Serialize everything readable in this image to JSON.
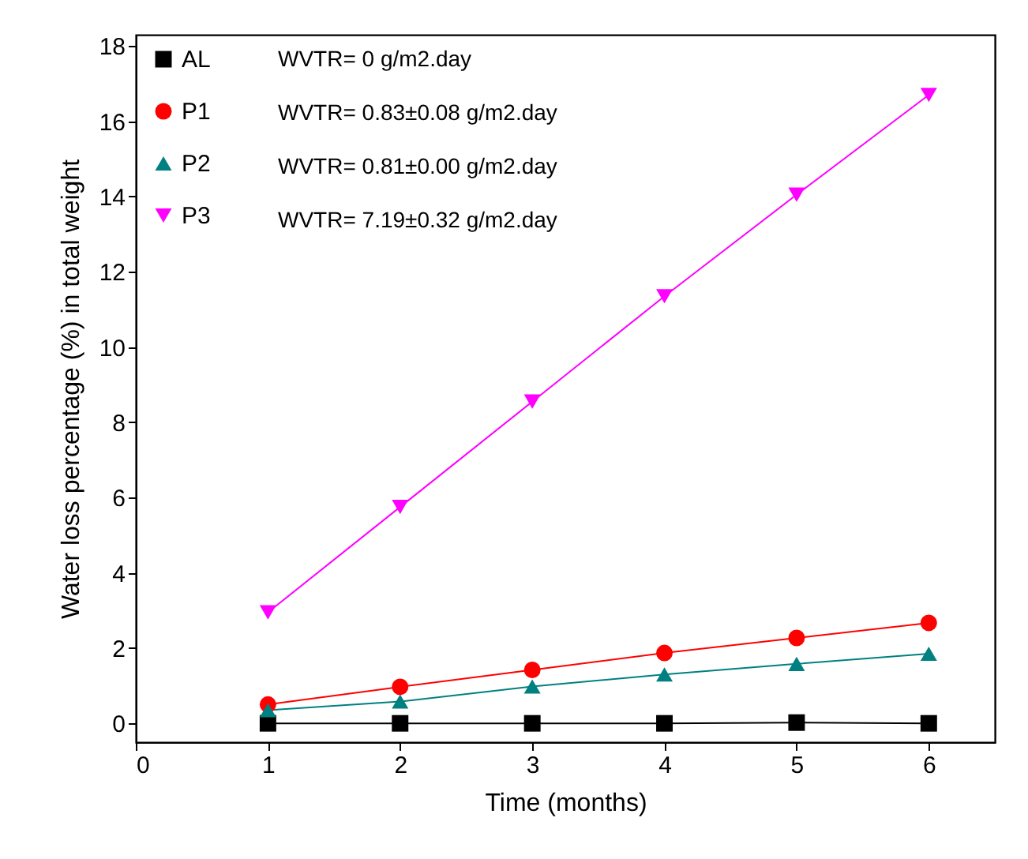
{
  "chart_data": {
    "type": "line",
    "xlabel": "Time (months)",
    "ylabel": "Water loss percentage (%) in total weight",
    "x": [
      1,
      2,
      3,
      4,
      5,
      6
    ],
    "series": [
      {
        "name": "AL",
        "color": "#000000",
        "marker": "square",
        "values": [
          0,
          0,
          0,
          0,
          0.02,
          0
        ]
      },
      {
        "name": "P1",
        "color": "#ff0000",
        "marker": "circle",
        "values": [
          0.5,
          0.97,
          1.42,
          1.87,
          2.27,
          2.67
        ]
      },
      {
        "name": "P2",
        "color": "#008080",
        "marker": "triangle",
        "values": [
          0.35,
          0.58,
          0.98,
          1.3,
          1.58,
          1.85
        ]
      },
      {
        "name": "P3",
        "color": "#ff00ff",
        "marker": "triangle-down",
        "values": [
          2.95,
          5.75,
          8.55,
          11.35,
          14.05,
          16.7
        ]
      }
    ],
    "annotations": [
      "WVTR= 0 g/m2.day",
      "WVTR= 0.83±0.08 g/m2.day",
      "WVTR=  0.81±0.00 g/m2.day",
      "WVTR= 7.19±0.32 g/m2.day"
    ],
    "xlim": [
      0,
      6.5
    ],
    "xticks": [
      0,
      1,
      2,
      3,
      4,
      5,
      6
    ],
    "ylim": [
      -0.5,
      18.3
    ],
    "yticks": [
      0,
      2,
      4,
      6,
      8,
      10,
      12,
      14,
      16,
      18
    ],
    "grid": false,
    "legend": "top left"
  }
}
